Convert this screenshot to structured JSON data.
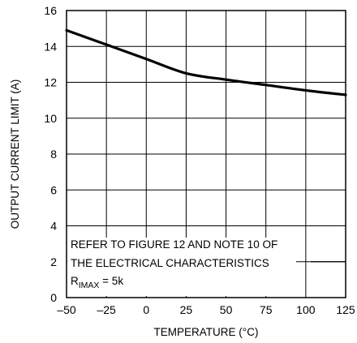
{
  "chart_data": {
    "type": "line",
    "title": "",
    "xlabel": "TEMPERATURE (°C)",
    "ylabel": "OUTPUT CURRENT LIMIT (A)",
    "xlim": [
      -50,
      125
    ],
    "ylim": [
      0,
      16
    ],
    "xticks": [
      -50,
      -25,
      0,
      25,
      50,
      75,
      100,
      125
    ],
    "yticks": [
      0,
      2,
      4,
      6,
      8,
      10,
      12,
      14,
      16
    ],
    "xtick_labels": [
      "–50",
      "–25",
      "0",
      "25",
      "50",
      "75",
      "100",
      "125"
    ],
    "ytick_labels": [
      "0",
      "2",
      "4",
      "6",
      "8",
      "10",
      "12",
      "14",
      "16"
    ],
    "grid": true,
    "series": [
      {
        "x": [
          -50,
          -25,
          0,
          25,
          50,
          75,
          100,
          125
        ],
        "y": [
          14.9,
          14.1,
          13.3,
          12.5,
          12.15,
          11.85,
          11.55,
          11.3
        ]
      }
    ],
    "annotation": {
      "line1": "REFER TO FIGURE 12 AND NOTE 10 OF",
      "line2": "THE ELECTRICAL CHARACTERISTICS",
      "line3_main": "R",
      "line3_sub": "IMAX",
      "line3_rest": " = 5k"
    },
    "colors": {
      "line": "#000000",
      "grid": "#000000",
      "background": "#ffffff"
    }
  }
}
